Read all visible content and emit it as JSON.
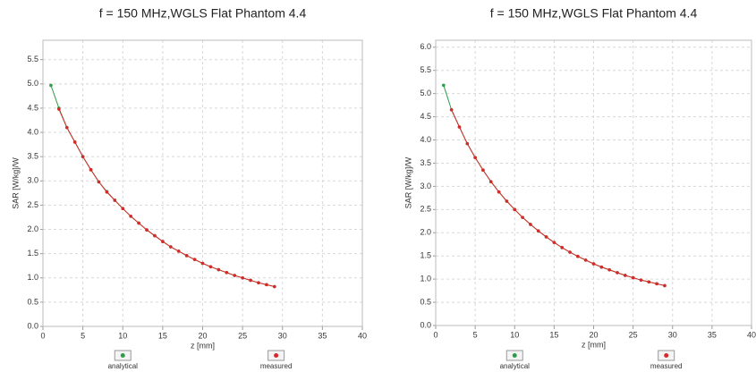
{
  "chart_data": [
    {
      "type": "line",
      "title": "f = 150 MHz,WGLS Flat Phantom 4.4",
      "xlabel": "z [mm]",
      "ylabel": "SAR [W/kg]/W",
      "xlim": [
        0,
        40
      ],
      "xticks": [
        0,
        5,
        10,
        15,
        20,
        25,
        30,
        35,
        40
      ],
      "ylim": [
        0,
        5.9
      ],
      "yticks": [
        {
          "value": 0,
          "label": "0.0"
        },
        0.5,
        {
          "value": 1,
          "label": "1.0"
        },
        1.5,
        {
          "value": 2,
          "label": "2.0"
        },
        2.5,
        {
          "value": 3,
          "label": "3.0"
        },
        3.5,
        {
          "value": 4,
          "label": "4.0"
        },
        4.5,
        {
          "value": 5,
          "label": "5.0"
        },
        5.5
      ],
      "grid": true,
      "series": [
        {
          "name": "analytical",
          "color": "#2e9e4a",
          "x": [
            1,
            2,
            3,
            4,
            5,
            6,
            7,
            8,
            9,
            10,
            11,
            12,
            13,
            14,
            15,
            16,
            17,
            18,
            19,
            20,
            21,
            22,
            23,
            24,
            25,
            26,
            27,
            28,
            29
          ],
          "values": [
            4.97,
            4.5,
            4.1,
            3.8,
            3.5,
            3.23,
            2.98,
            2.78,
            2.6,
            2.43,
            2.27,
            2.13,
            1.99,
            1.87,
            1.75,
            1.64,
            1.55,
            1.46,
            1.38,
            1.3,
            1.23,
            1.17,
            1.11,
            1.05,
            1.0,
            0.95,
            0.9,
            0.86,
            0.82
          ]
        },
        {
          "name": "measured",
          "color": "#d62a2a",
          "x": [
            2,
            3,
            4,
            5,
            6,
            7,
            8,
            9,
            10,
            11,
            12,
            13,
            14,
            15,
            16,
            17,
            18,
            19,
            20,
            21,
            22,
            23,
            24,
            25,
            26,
            27,
            28,
            29
          ],
          "values": [
            4.48,
            4.1,
            3.8,
            3.5,
            3.23,
            2.98,
            2.77,
            2.6,
            2.43,
            2.27,
            2.13,
            1.99,
            1.87,
            1.75,
            1.64,
            1.55,
            1.46,
            1.38,
            1.3,
            1.23,
            1.17,
            1.11,
            1.05,
            1.0,
            0.95,
            0.9,
            0.86,
            0.82
          ]
        }
      ]
    },
    {
      "type": "line",
      "title": "f = 150 MHz,WGLS Flat Phantom 4.4",
      "xlabel": "z [mm]",
      "ylabel": "SAR [W/kg]/W",
      "xlim": [
        0,
        40
      ],
      "xticks": [
        0,
        5,
        10,
        15,
        20,
        25,
        30,
        35,
        40
      ],
      "ylim": [
        0,
        6.15
      ],
      "yticks": [
        {
          "value": 0,
          "label": "0.0"
        },
        0.5,
        {
          "value": 1,
          "label": "1.0"
        },
        1.5,
        {
          "value": 2,
          "label": "2.0"
        },
        2.5,
        {
          "value": 3,
          "label": "3.0"
        },
        3.5,
        {
          "value": 4,
          "label": "4.0"
        },
        4.5,
        {
          "value": 5,
          "label": "5.0"
        },
        5.5,
        {
          "value": 6,
          "label": "6.0"
        }
      ],
      "grid": true,
      "series": [
        {
          "name": "analytical",
          "color": "#2e9e4a",
          "x": [
            1,
            2,
            3,
            4,
            5,
            6,
            7,
            8,
            9,
            10,
            11,
            12,
            13,
            14,
            15,
            16,
            17,
            18,
            19,
            20,
            21,
            22,
            23,
            24,
            25,
            26,
            27,
            28,
            29
          ],
          "values": [
            5.18,
            4.65,
            4.28,
            3.92,
            3.62,
            3.35,
            3.1,
            2.88,
            2.68,
            2.5,
            2.33,
            2.18,
            2.04,
            1.91,
            1.79,
            1.68,
            1.58,
            1.49,
            1.41,
            1.33,
            1.26,
            1.2,
            1.14,
            1.08,
            1.03,
            0.98,
            0.94,
            0.9,
            0.86
          ]
        },
        {
          "name": "measured",
          "color": "#d62a2a",
          "x": [
            2,
            3,
            4,
            5,
            6,
            7,
            8,
            9,
            10,
            11,
            12,
            13,
            14,
            15,
            16,
            17,
            18,
            19,
            20,
            21,
            22,
            23,
            24,
            25,
            26,
            27,
            28,
            29
          ],
          "values": [
            4.65,
            4.28,
            3.92,
            3.62,
            3.35,
            3.1,
            2.88,
            2.68,
            2.5,
            2.33,
            2.18,
            2.04,
            1.91,
            1.79,
            1.68,
            1.58,
            1.49,
            1.41,
            1.33,
            1.26,
            1.2,
            1.14,
            1.08,
            1.03,
            0.98,
            0.94,
            0.9,
            0.86
          ]
        }
      ]
    }
  ]
}
